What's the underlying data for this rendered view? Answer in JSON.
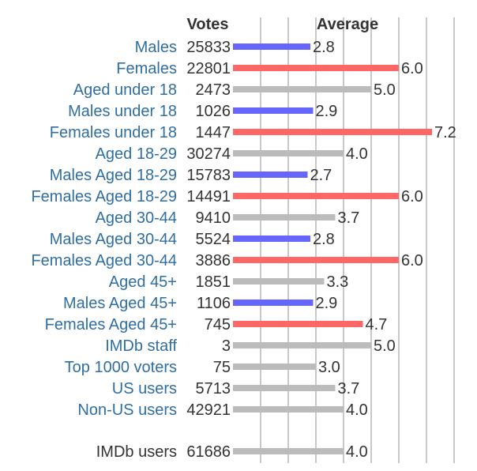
{
  "chart_data": {
    "type": "bar",
    "headers": {
      "votes": "Votes",
      "average": "Average"
    },
    "xlim": [
      0,
      8
    ],
    "grid": true,
    "colors": {
      "male": "#6666ff",
      "female": "#ff6666",
      "all": "#bbbbbb"
    },
    "rows": [
      {
        "label": "Males",
        "votes": "25833",
        "value": 2.8,
        "value_label": "2.8",
        "group": "male"
      },
      {
        "label": "Females",
        "votes": "22801",
        "value": 6.0,
        "value_label": "6.0",
        "group": "female"
      },
      {
        "label": "Aged under 18",
        "votes": "2473",
        "value": 5.0,
        "value_label": "5.0",
        "group": "all"
      },
      {
        "label": "Males under 18",
        "votes": "1026",
        "value": 2.9,
        "value_label": "2.9",
        "group": "male"
      },
      {
        "label": "Females under 18",
        "votes": "1447",
        "value": 7.2,
        "value_label": "7.2",
        "group": "female"
      },
      {
        "label": "Aged 18-29",
        "votes": "30274",
        "value": 4.0,
        "value_label": "4.0",
        "group": "all"
      },
      {
        "label": "Males Aged 18-29",
        "votes": "15783",
        "value": 2.7,
        "value_label": "2.7",
        "group": "male"
      },
      {
        "label": "Females Aged 18-29",
        "votes": "14491",
        "value": 6.0,
        "value_label": "6.0",
        "group": "female"
      },
      {
        "label": "Aged 30-44",
        "votes": "9410",
        "value": 3.7,
        "value_label": "3.7",
        "group": "all"
      },
      {
        "label": "Males Aged 30-44",
        "votes": "5524",
        "value": 2.8,
        "value_label": "2.8",
        "group": "male"
      },
      {
        "label": "Females Aged 30-44",
        "votes": "3886",
        "value": 6.0,
        "value_label": "6.0",
        "group": "female"
      },
      {
        "label": "Aged 45+",
        "votes": "1851",
        "value": 3.3,
        "value_label": "3.3",
        "group": "all"
      },
      {
        "label": "Males Aged 45+",
        "votes": "1106",
        "value": 2.9,
        "value_label": "2.9",
        "group": "male"
      },
      {
        "label": "Females Aged 45+",
        "votes": "745",
        "value": 4.7,
        "value_label": "4.7",
        "group": "female"
      },
      {
        "label": "IMDb staff",
        "votes": "3",
        "value": 5.0,
        "value_label": "5.0",
        "group": "all"
      },
      {
        "label": "Top 1000 voters",
        "votes": "75",
        "value": 3.0,
        "value_label": "3.0",
        "group": "all"
      },
      {
        "label": "US users",
        "votes": "5713",
        "value": 3.7,
        "value_label": "3.7",
        "group": "all"
      },
      {
        "label": "Non-US users",
        "votes": "42921",
        "value": 4.0,
        "value_label": "4.0",
        "group": "all"
      }
    ],
    "total": {
      "label": "IMDb users",
      "votes": "61686",
      "value": 4.0,
      "value_label": "4.0",
      "group": "all"
    }
  }
}
